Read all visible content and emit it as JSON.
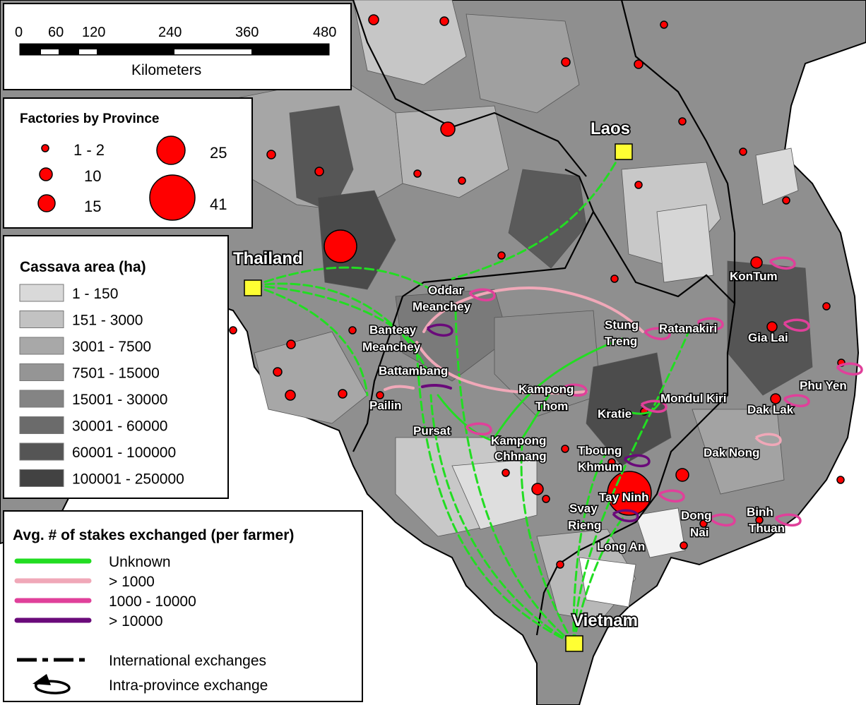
{
  "scale_bar": {
    "ticks": [
      "0",
      "60",
      "120",
      "240",
      "360",
      "480"
    ],
    "unit": "Kilometers"
  },
  "factories_legend": {
    "title": "Factories by Province",
    "classes": [
      "1 - 2",
      "10",
      "15",
      "25",
      "41"
    ]
  },
  "cassava_legend": {
    "title": "Cassava area (ha)",
    "classes": [
      {
        "label": "1 - 150",
        "color": "#d9d9d9"
      },
      {
        "label": "151 - 3000",
        "color": "#c2c2c2"
      },
      {
        "label": "3001 - 7500",
        "color": "#a8a8a8"
      },
      {
        "label": "7501 - 15000",
        "color": "#959595"
      },
      {
        "label": "15001 - 30000",
        "color": "#848484"
      },
      {
        "label": "30001 - 60000",
        "color": "#6b6b6b"
      },
      {
        "label": "60001 - 100000",
        "color": "#555555"
      },
      {
        "label": "100001 - 250000",
        "color": "#424242"
      }
    ]
  },
  "stakes_legend": {
    "title": "Avg. # of stakes exchanged (per farmer)",
    "classes": [
      {
        "label": "Unknown",
        "color": "#22dd22"
      },
      {
        "label": "> 1000",
        "color": "#f0a8b8"
      },
      {
        "label": "1000 - 10000",
        "color": "#e0409a"
      },
      {
        "label": "> 10000",
        "color": "#6a0a7a"
      }
    ],
    "international_label": "International exchanges",
    "intra_label": "Intra-province exchange"
  },
  "countries": {
    "thailand": "Thailand",
    "laos": "Laos",
    "vietnam": "Vietnam"
  },
  "places": {
    "oddar_1": "Oddar",
    "oddar_2": "Meanchey",
    "banteay_1": "Banteay",
    "banteay_2": "Meanchey",
    "battambang": "Battambang",
    "pailin": "Pailin",
    "pursat": "Pursat",
    "kampong_thom_1": "Kampong",
    "kampong_thom_2": "Thom",
    "kampong_chhnang_1": "Kampong",
    "kampong_chhnang_2": "Chhnang",
    "stung_treng_1": "Stung",
    "stung_treng_2": "Treng",
    "ratanakiri": "Ratanakiri",
    "kratie": "Kratie",
    "mondul_kiri": "Mondul Kiri",
    "tboung_1": "Tboung",
    "tboung_2": "Khmum",
    "tay_ninh": "Tay Ninh",
    "svay_1": "Svay",
    "svay_2": "Rieng",
    "long_an": "Long An",
    "kontum": "KonTum",
    "gia_lai": "Gia Lai",
    "phu_yen": "Phu Yen",
    "dak_lak": "Dak Lak",
    "dak_nong": "Dak Nong",
    "dong_nai_1": "Dong",
    "dong_nai_2": "Nai",
    "binh_thuan_1": "Binh",
    "binh_thuan_2": "Thuan"
  }
}
